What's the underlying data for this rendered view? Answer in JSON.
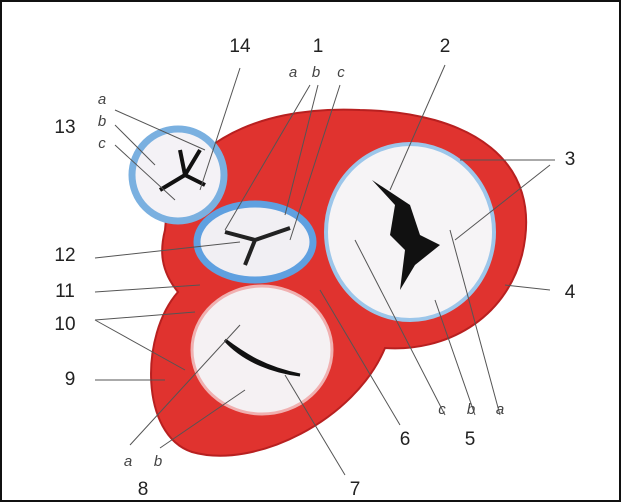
{
  "labels": [
    {
      "number": "1",
      "parts": [
        "a",
        "b",
        "c"
      ]
    },
    {
      "number": "2"
    },
    {
      "number": "3"
    },
    {
      "number": "4"
    },
    {
      "number": "5",
      "parts": [
        "c",
        "b",
        "a"
      ]
    },
    {
      "number": "6"
    },
    {
      "number": "7"
    },
    {
      "number": "8",
      "parts": [
        "a",
        "b"
      ]
    },
    {
      "number": "9"
    },
    {
      "number": "10"
    },
    {
      "number": "11"
    },
    {
      "number": "12"
    },
    {
      "number": "13",
      "parts": [
        "a",
        "b",
        "c"
      ]
    },
    {
      "number": "14"
    }
  ]
}
